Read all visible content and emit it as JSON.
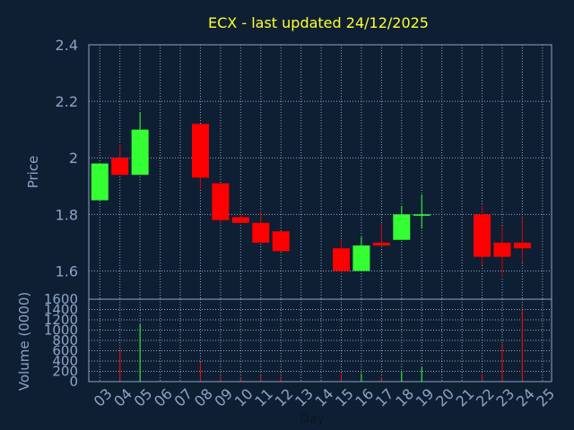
{
  "chart_data": {
    "type": "candlestick",
    "title": "ECX - last updated 24/12/2025",
    "xlabel": "Day",
    "price_panel": {
      "ylabel": "Price",
      "ylim": [
        1.5,
        2.4
      ],
      "yticks": [
        "1.6",
        "1.8",
        "2",
        "2.2",
        "2.4"
      ],
      "ytick_values": [
        1.6,
        1.8,
        2.0,
        2.2,
        2.4
      ]
    },
    "volume_panel": {
      "ylabel": "Volume (0000)",
      "ylim": [
        0,
        1600
      ],
      "yticks": [
        "0",
        "200",
        "400",
        "600",
        "800",
        "1000",
        "1200",
        "1400",
        "1600"
      ],
      "ytick_values": [
        0,
        200,
        400,
        600,
        800,
        1000,
        1200,
        1400,
        1600
      ]
    },
    "categories": [
      "03",
      "04",
      "05",
      "06",
      "07",
      "08",
      "09",
      "10",
      "11",
      "12",
      "13",
      "14",
      "15",
      "16",
      "17",
      "18",
      "19",
      "20",
      "21",
      "22",
      "23",
      "24",
      "25"
    ],
    "candles": [
      {
        "day": "03",
        "open": 1.85,
        "close": 1.98,
        "high": 1.98,
        "low": 1.85,
        "volume": 0
      },
      {
        "day": "04",
        "open": 2.0,
        "close": 1.94,
        "high": 2.05,
        "low": 1.94,
        "volume": 630
      },
      {
        "day": "05",
        "open": 1.94,
        "close": 2.1,
        "high": 2.16,
        "low": 1.94,
        "volume": 1120
      },
      {
        "day": "08",
        "open": 2.12,
        "close": 1.93,
        "high": 2.12,
        "low": 1.89,
        "volume": 380
      },
      {
        "day": "09",
        "open": 1.91,
        "close": 1.78,
        "high": 1.91,
        "low": 1.77,
        "volume": 100
      },
      {
        "day": "10",
        "open": 1.79,
        "close": 1.77,
        "high": 1.8,
        "low": 1.77,
        "volume": 80
      },
      {
        "day": "11",
        "open": 1.77,
        "close": 1.7,
        "high": 1.81,
        "low": 1.7,
        "volume": 110
      },
      {
        "day": "12",
        "open": 1.74,
        "close": 1.67,
        "high": 1.74,
        "low": 1.67,
        "volume": 100
      },
      {
        "day": "15",
        "open": 1.68,
        "close": 1.6,
        "high": 1.71,
        "low": 1.59,
        "volume": 150
      },
      {
        "day": "16",
        "open": 1.6,
        "close": 1.69,
        "high": 1.72,
        "low": 1.6,
        "volume": 160
      },
      {
        "day": "17",
        "open": 1.7,
        "close": 1.69,
        "high": 1.77,
        "low": 1.69,
        "volume": 90
      },
      {
        "day": "18",
        "open": 1.71,
        "close": 1.8,
        "high": 1.83,
        "low": 1.71,
        "volume": 190
      },
      {
        "day": "19",
        "open": 1.8,
        "close": 1.8,
        "high": 1.87,
        "low": 1.75,
        "volume": 280
      },
      {
        "day": "22",
        "open": 1.8,
        "close": 1.65,
        "high": 1.83,
        "low": 1.62,
        "volume": 140
      },
      {
        "day": "23",
        "open": 1.7,
        "close": 1.65,
        "high": 1.76,
        "low": 1.58,
        "volume": 730
      },
      {
        "day": "24",
        "open": 1.7,
        "close": 1.68,
        "high": 1.79,
        "low": 1.63,
        "volume": 1390
      }
    ],
    "colors": {
      "up": "#33ff33",
      "down": "#ff0000",
      "wick_down": "#cc0000",
      "grid": "#8ea4c0",
      "frame": "#8aa4c6",
      "text": "#8aa4c6",
      "title": "#ffff33",
      "background": "#0f1f33",
      "plot_background": "#0f1f33"
    },
    "grid": true
  }
}
